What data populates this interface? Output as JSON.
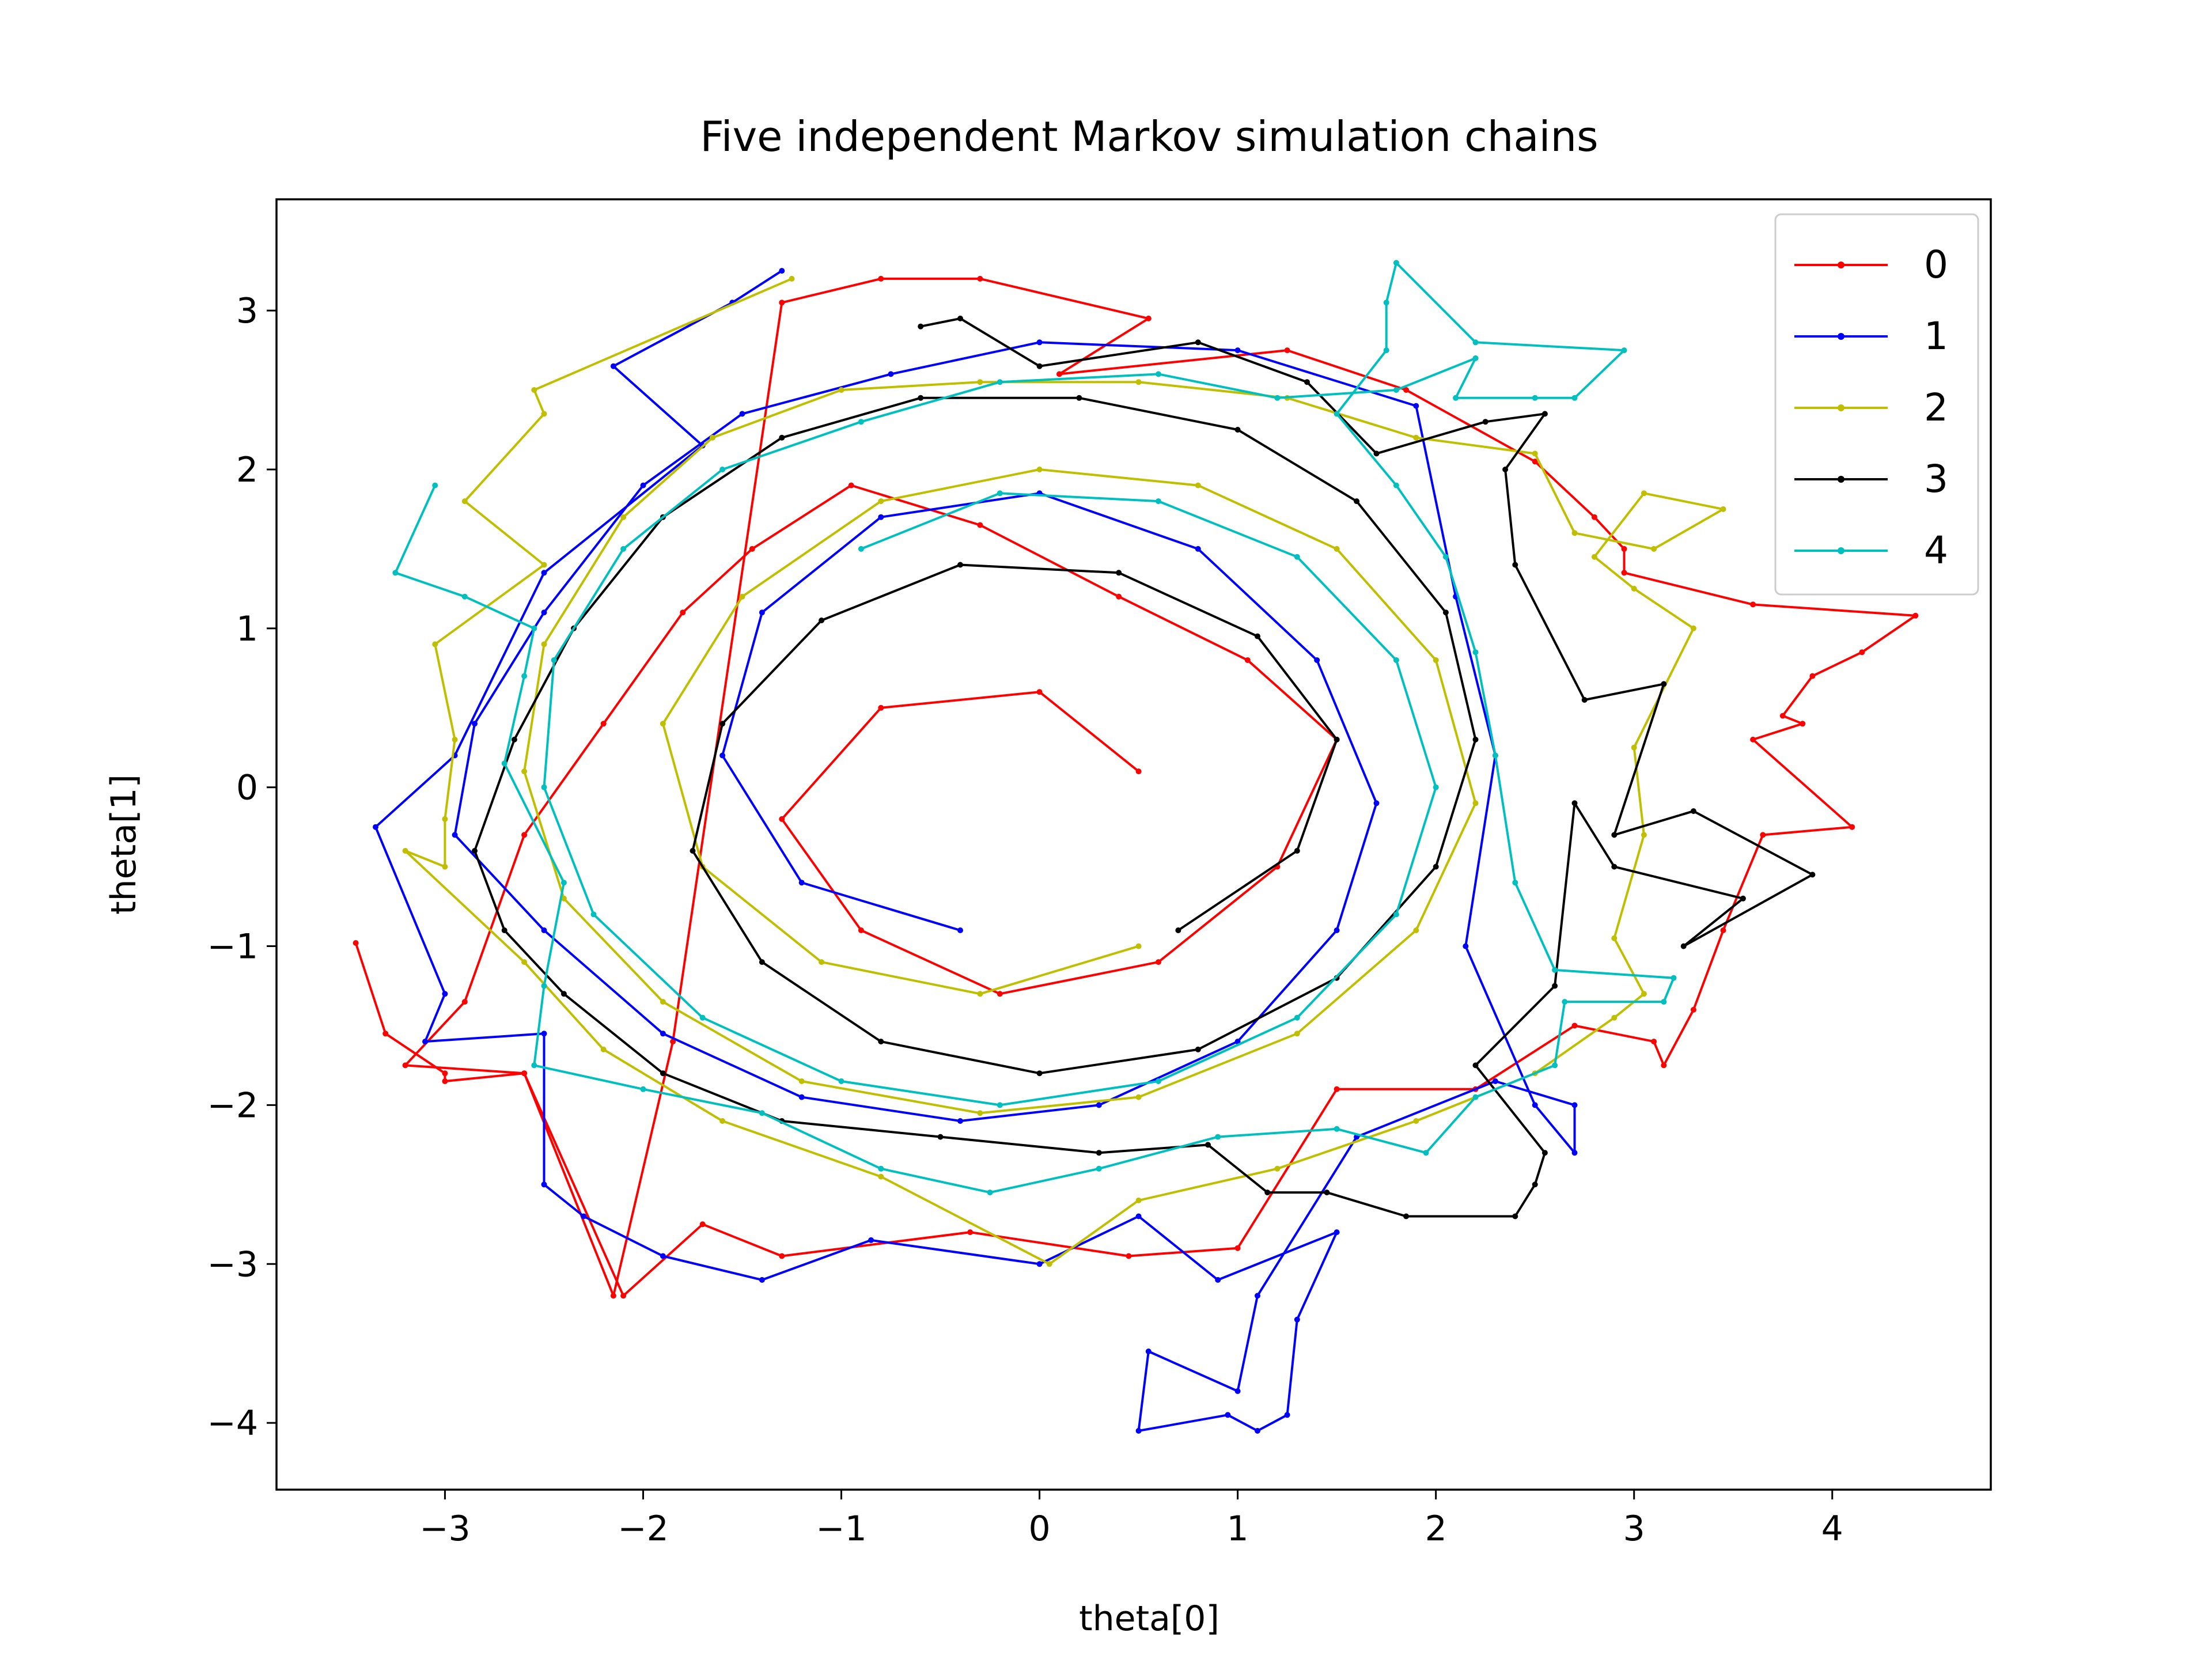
{
  "chart_data": {
    "type": "line",
    "title": "Five independent Markov simulation chains",
    "xlabel": "theta[0]",
    "ylabel": "theta[1]",
    "xlim": [
      -3.85,
      4.8
    ],
    "ylim": [
      -4.42,
      3.7
    ],
    "xticks": [
      -3,
      -2,
      -1,
      0,
      1,
      2,
      3,
      4
    ],
    "yticks": [
      -4,
      -3,
      -2,
      -1,
      0,
      1,
      2,
      3
    ],
    "xtick_labels": [
      "−3",
      "−2",
      "−1",
      "0",
      "1",
      "2",
      "3",
      "4"
    ],
    "ytick_labels": [
      "−4",
      "−3",
      "−2",
      "−1",
      "0",
      "1",
      "2",
      "3"
    ],
    "grid": false,
    "legend_position": "upper right",
    "marker": "small dots",
    "series": [
      {
        "name": "0",
        "color": "#ff0000",
        "sample_points": [
          [
            -3.45,
            -0.98
          ],
          [
            -3.3,
            -1.55
          ],
          [
            -3.0,
            -1.8
          ],
          [
            -3.0,
            -1.85
          ],
          [
            -2.6,
            -1.8
          ],
          [
            -2.15,
            -3.2
          ],
          [
            -1.85,
            -1.6
          ],
          [
            -1.3,
            3.05
          ],
          [
            -0.8,
            3.2
          ],
          [
            -0.3,
            3.2
          ],
          [
            0.55,
            2.95
          ],
          [
            0.1,
            2.6
          ],
          [
            1.25,
            2.75
          ],
          [
            1.85,
            2.5
          ],
          [
            2.5,
            2.05
          ],
          [
            2.8,
            1.7
          ],
          [
            2.95,
            1.5
          ],
          [
            2.95,
            1.35
          ],
          [
            3.6,
            1.15
          ],
          [
            4.42,
            1.08
          ],
          [
            4.15,
            0.85
          ],
          [
            3.9,
            0.7
          ],
          [
            3.75,
            0.45
          ],
          [
            3.85,
            0.4
          ],
          [
            3.6,
            0.3
          ],
          [
            4.1,
            -0.25
          ],
          [
            3.65,
            -0.3
          ],
          [
            3.45,
            -0.9
          ],
          [
            3.3,
            -1.4
          ],
          [
            3.15,
            -1.75
          ],
          [
            3.1,
            -1.6
          ],
          [
            2.7,
            -1.5
          ],
          [
            2.2,
            -1.9
          ],
          [
            1.5,
            -1.9
          ],
          [
            1.0,
            -2.9
          ],
          [
            0.45,
            -2.95
          ],
          [
            -0.35,
            -2.8
          ],
          [
            -1.3,
            -2.95
          ],
          [
            -1.7,
            -2.75
          ],
          [
            -2.1,
            -3.2
          ],
          [
            -2.6,
            -1.8
          ],
          [
            -3.2,
            -1.75
          ],
          [
            -2.9,
            -1.35
          ],
          [
            -2.6,
            -0.3
          ],
          [
            -2.2,
            0.4
          ],
          [
            -1.8,
            1.1
          ],
          [
            -1.45,
            1.5
          ],
          [
            -0.95,
            1.9
          ],
          [
            -0.3,
            1.65
          ],
          [
            0.4,
            1.2
          ],
          [
            1.05,
            0.8
          ],
          [
            1.5,
            0.3
          ],
          [
            1.2,
            -0.5
          ],
          [
            0.6,
            -1.1
          ],
          [
            -0.2,
            -1.3
          ],
          [
            -0.9,
            -0.9
          ],
          [
            -1.3,
            -0.2
          ],
          [
            -0.8,
            0.5
          ],
          [
            0.0,
            0.6
          ],
          [
            0.5,
            0.1
          ]
        ]
      },
      {
        "name": "1",
        "color": "#0000ff",
        "sample_points": [
          [
            -1.3,
            3.25
          ],
          [
            -1.55,
            3.05
          ],
          [
            -2.15,
            2.65
          ],
          [
            -1.7,
            2.15
          ],
          [
            -2.5,
            1.35
          ],
          [
            -2.95,
            0.2
          ],
          [
            -3.35,
            -0.25
          ],
          [
            -3.0,
            -1.3
          ],
          [
            -3.1,
            -1.6
          ],
          [
            -2.5,
            -1.55
          ],
          [
            -2.5,
            -2.5
          ],
          [
            -2.3,
            -2.7
          ],
          [
            -1.9,
            -2.95
          ],
          [
            -1.4,
            -3.1
          ],
          [
            -0.85,
            -2.85
          ],
          [
            0.0,
            -3.0
          ],
          [
            0.5,
            -2.7
          ],
          [
            0.9,
            -3.1
          ],
          [
            1.5,
            -2.8
          ],
          [
            1.3,
            -3.35
          ],
          [
            1.25,
            -3.95
          ],
          [
            1.1,
            -4.05
          ],
          [
            0.95,
            -3.95
          ],
          [
            0.5,
            -4.05
          ],
          [
            0.55,
            -3.55
          ],
          [
            1.0,
            -3.8
          ],
          [
            1.1,
            -3.2
          ],
          [
            1.6,
            -2.2
          ],
          [
            2.3,
            -1.85
          ],
          [
            2.7,
            -2.0
          ],
          [
            2.7,
            -2.3
          ],
          [
            2.5,
            -2.0
          ],
          [
            2.15,
            -1.0
          ],
          [
            2.3,
            0.2
          ],
          [
            2.1,
            1.2
          ],
          [
            1.9,
            2.4
          ],
          [
            1.0,
            2.75
          ],
          [
            0.0,
            2.8
          ],
          [
            -0.75,
            2.6
          ],
          [
            -1.5,
            2.35
          ],
          [
            -2.0,
            1.9
          ],
          [
            -2.5,
            1.1
          ],
          [
            -2.85,
            0.4
          ],
          [
            -2.95,
            -0.3
          ],
          [
            -2.5,
            -0.9
          ],
          [
            -1.9,
            -1.55
          ],
          [
            -1.2,
            -1.95
          ],
          [
            -0.4,
            -2.1
          ],
          [
            0.3,
            -2.0
          ],
          [
            1.0,
            -1.6
          ],
          [
            1.5,
            -0.9
          ],
          [
            1.7,
            -0.1
          ],
          [
            1.4,
            0.8
          ],
          [
            0.8,
            1.5
          ],
          [
            0.0,
            1.85
          ],
          [
            -0.8,
            1.7
          ],
          [
            -1.4,
            1.1
          ],
          [
            -1.6,
            0.2
          ],
          [
            -1.2,
            -0.6
          ],
          [
            -0.4,
            -0.9
          ]
        ]
      },
      {
        "name": "2",
        "color": "#bfbf00",
        "sample_points": [
          [
            -1.25,
            3.2
          ],
          [
            -2.55,
            2.5
          ],
          [
            -2.5,
            2.35
          ],
          [
            -2.9,
            1.8
          ],
          [
            -2.5,
            1.4
          ],
          [
            -3.05,
            0.9
          ],
          [
            -2.95,
            0.3
          ],
          [
            -3.0,
            -0.2
          ],
          [
            -3.0,
            -0.5
          ],
          [
            -3.2,
            -0.4
          ],
          [
            -2.6,
            -1.1
          ],
          [
            -2.2,
            -1.65
          ],
          [
            -1.6,
            -2.1
          ],
          [
            -0.8,
            -2.45
          ],
          [
            0.05,
            -3.0
          ],
          [
            0.5,
            -2.6
          ],
          [
            1.2,
            -2.4
          ],
          [
            1.9,
            -2.1
          ],
          [
            2.5,
            -1.8
          ],
          [
            2.9,
            -1.45
          ],
          [
            3.05,
            -1.3
          ],
          [
            2.9,
            -0.95
          ],
          [
            3.05,
            -0.3
          ],
          [
            3.0,
            0.25
          ],
          [
            3.3,
            1.0
          ],
          [
            3.0,
            1.25
          ],
          [
            2.8,
            1.45
          ],
          [
            3.05,
            1.85
          ],
          [
            3.45,
            1.75
          ],
          [
            3.1,
            1.5
          ],
          [
            2.7,
            1.6
          ],
          [
            2.5,
            2.1
          ],
          [
            1.9,
            2.2
          ],
          [
            1.25,
            2.45
          ],
          [
            0.5,
            2.55
          ],
          [
            -0.3,
            2.55
          ],
          [
            -1.0,
            2.5
          ],
          [
            -1.65,
            2.2
          ],
          [
            -2.1,
            1.7
          ],
          [
            -2.5,
            0.9
          ],
          [
            -2.6,
            0.1
          ],
          [
            -2.4,
            -0.7
          ],
          [
            -1.9,
            -1.35
          ],
          [
            -1.2,
            -1.85
          ],
          [
            -0.3,
            -2.05
          ],
          [
            0.5,
            -1.95
          ],
          [
            1.3,
            -1.55
          ],
          [
            1.9,
            -0.9
          ],
          [
            2.2,
            -0.1
          ],
          [
            2.0,
            0.8
          ],
          [
            1.5,
            1.5
          ],
          [
            0.8,
            1.9
          ],
          [
            0.0,
            2.0
          ],
          [
            -0.8,
            1.8
          ],
          [
            -1.5,
            1.2
          ],
          [
            -1.9,
            0.4
          ],
          [
            -1.7,
            -0.5
          ],
          [
            -1.1,
            -1.1
          ],
          [
            -0.3,
            -1.3
          ],
          [
            0.5,
            -1.0
          ]
        ]
      },
      {
        "name": "3",
        "color": "#000000",
        "sample_points": [
          [
            -0.6,
            2.9
          ],
          [
            -0.4,
            2.95
          ],
          [
            0.0,
            2.65
          ],
          [
            0.8,
            2.8
          ],
          [
            1.35,
            2.55
          ],
          [
            1.7,
            2.1
          ],
          [
            2.25,
            2.3
          ],
          [
            2.55,
            2.35
          ],
          [
            2.35,
            2.0
          ],
          [
            2.4,
            1.4
          ],
          [
            2.75,
            0.55
          ],
          [
            3.15,
            0.65
          ],
          [
            2.9,
            -0.3
          ],
          [
            3.3,
            -0.15
          ],
          [
            3.9,
            -0.55
          ],
          [
            3.25,
            -1.0
          ],
          [
            3.55,
            -0.7
          ],
          [
            2.9,
            -0.5
          ],
          [
            2.7,
            -0.1
          ],
          [
            2.6,
            -1.25
          ],
          [
            2.2,
            -1.75
          ],
          [
            2.55,
            -2.3
          ],
          [
            2.5,
            -2.5
          ],
          [
            2.4,
            -2.7
          ],
          [
            1.85,
            -2.7
          ],
          [
            1.45,
            -2.55
          ],
          [
            1.15,
            -2.55
          ],
          [
            0.85,
            -2.25
          ],
          [
            0.3,
            -2.3
          ],
          [
            -0.5,
            -2.2
          ],
          [
            -1.3,
            -2.1
          ],
          [
            -1.9,
            -1.8
          ],
          [
            -2.4,
            -1.3
          ],
          [
            -2.7,
            -0.9
          ],
          [
            -2.85,
            -0.4
          ],
          [
            -2.65,
            0.3
          ],
          [
            -2.35,
            1.0
          ],
          [
            -1.9,
            1.7
          ],
          [
            -1.3,
            2.2
          ],
          [
            -0.6,
            2.45
          ],
          [
            0.2,
            2.45
          ],
          [
            1.0,
            2.25
          ],
          [
            1.6,
            1.8
          ],
          [
            2.05,
            1.1
          ],
          [
            2.2,
            0.3
          ],
          [
            2.0,
            -0.5
          ],
          [
            1.5,
            -1.2
          ],
          [
            0.8,
            -1.65
          ],
          [
            0.0,
            -1.8
          ],
          [
            -0.8,
            -1.6
          ],
          [
            -1.4,
            -1.1
          ],
          [
            -1.75,
            -0.4
          ],
          [
            -1.6,
            0.4
          ],
          [
            -1.1,
            1.05
          ],
          [
            -0.4,
            1.4
          ],
          [
            0.4,
            1.35
          ],
          [
            1.1,
            0.95
          ],
          [
            1.5,
            0.3
          ],
          [
            1.3,
            -0.4
          ],
          [
            0.7,
            -0.9
          ]
        ]
      },
      {
        "name": "4",
        "color": "#00bfbf",
        "sample_points": [
          [
            -3.05,
            1.9
          ],
          [
            -3.25,
            1.35
          ],
          [
            -2.9,
            1.2
          ],
          [
            -2.55,
            1.0
          ],
          [
            -2.6,
            0.7
          ],
          [
            -2.7,
            0.15
          ],
          [
            -2.4,
            -0.6
          ],
          [
            -2.5,
            -1.25
          ],
          [
            -2.55,
            -1.75
          ],
          [
            -2.0,
            -1.9
          ],
          [
            -1.4,
            -2.05
          ],
          [
            -0.8,
            -2.4
          ],
          [
            -0.25,
            -2.55
          ],
          [
            0.3,
            -2.4
          ],
          [
            0.9,
            -2.2
          ],
          [
            1.5,
            -2.15
          ],
          [
            1.95,
            -2.3
          ],
          [
            2.2,
            -1.95
          ],
          [
            2.6,
            -1.75
          ],
          [
            2.65,
            -1.35
          ],
          [
            3.15,
            -1.35
          ],
          [
            3.2,
            -1.2
          ],
          [
            2.6,
            -1.15
          ],
          [
            2.4,
            -0.6
          ],
          [
            2.3,
            0.2
          ],
          [
            2.2,
            0.85
          ],
          [
            2.05,
            1.45
          ],
          [
            1.8,
            1.9
          ],
          [
            1.5,
            2.35
          ],
          [
            1.75,
            2.75
          ],
          [
            1.75,
            3.05
          ],
          [
            1.8,
            3.3
          ],
          [
            2.2,
            2.8
          ],
          [
            2.95,
            2.75
          ],
          [
            2.7,
            2.45
          ],
          [
            2.5,
            2.45
          ],
          [
            2.1,
            2.45
          ],
          [
            2.2,
            2.7
          ],
          [
            1.8,
            2.5
          ],
          [
            1.2,
            2.45
          ],
          [
            0.6,
            2.6
          ],
          [
            -0.2,
            2.55
          ],
          [
            -0.9,
            2.3
          ],
          [
            -1.6,
            2.0
          ],
          [
            -2.1,
            1.5
          ],
          [
            -2.45,
            0.8
          ],
          [
            -2.5,
            0.0
          ],
          [
            -2.25,
            -0.8
          ],
          [
            -1.7,
            -1.45
          ],
          [
            -1.0,
            -1.85
          ],
          [
            -0.2,
            -2.0
          ],
          [
            0.6,
            -1.85
          ],
          [
            1.3,
            -1.45
          ],
          [
            1.8,
            -0.8
          ],
          [
            2.0,
            0.0
          ],
          [
            1.8,
            0.8
          ],
          [
            1.3,
            1.45
          ],
          [
            0.6,
            1.8
          ],
          [
            -0.2,
            1.85
          ],
          [
            -0.9,
            1.5
          ]
        ]
      }
    ]
  }
}
